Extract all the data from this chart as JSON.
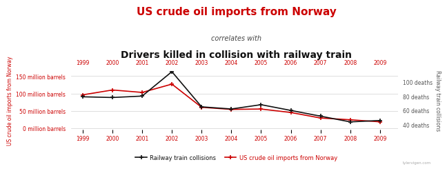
{
  "title_line1": "US crude oil imports from Norway",
  "title_line2": "correlates with",
  "title_line3": "Drivers killed in collision with railway train",
  "years": [
    1999,
    2000,
    2001,
    2002,
    2003,
    2004,
    2005,
    2006,
    2007,
    2008,
    2009
  ],
  "oil_imports": [
    96,
    110,
    103,
    127,
    60,
    54,
    55,
    45,
    29,
    24,
    18
  ],
  "railway_collisions": [
    79,
    78,
    80,
    114,
    65,
    62,
    68,
    60,
    52,
    44,
    46
  ],
  "oil_color": "#cc0000",
  "railway_color": "#111111",
  "left_ylabel": "US crude oil imports from Norway",
  "right_ylabel": "Railway train collisions",
  "left_yticks": [
    0,
    50,
    100,
    150
  ],
  "left_yticklabels": [
    "0 million barrels",
    "50 million barrels",
    "100 million barrels",
    "150 million barrels"
  ],
  "right_yticks": [
    40,
    60,
    80,
    100
  ],
  "right_yticklabels": [
    "40 deaths",
    "60 deaths",
    "80 deaths",
    "100 deaths"
  ],
  "ylim_left": [
    -5,
    165
  ],
  "ylim_right": [
    33,
    115
  ],
  "bg_color": "#ffffff",
  "watermark": "tylervigen.com",
  "legend_railway": "Railway train collisions",
  "legend_oil": "US crude oil imports from Norway",
  "title1_fontsize": 11,
  "title2_fontsize": 7,
  "title3_fontsize": 10,
  "tick_fontsize": 5.5,
  "ylabel_fontsize": 5.5
}
